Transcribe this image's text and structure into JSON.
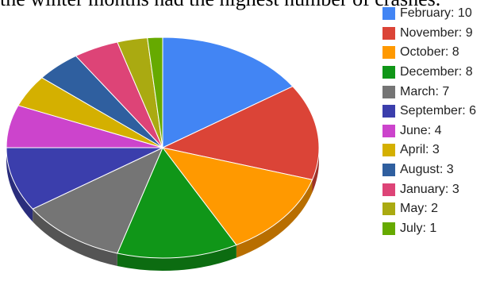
{
  "caption": "the winter months had the highest number of crashes.",
  "chart_data": {
    "type": "pie",
    "style": "3d",
    "legend_position": "right",
    "slices": [
      {
        "label": "February",
        "value": 10,
        "color": "#4285f4"
      },
      {
        "label": "November",
        "value": 9,
        "color": "#db4437"
      },
      {
        "label": "October",
        "value": 8,
        "color": "#ff9900"
      },
      {
        "label": "December",
        "value": 8,
        "color": "#109618"
      },
      {
        "label": "March",
        "value": 7,
        "color": "#757575"
      },
      {
        "label": "September",
        "value": 6,
        "color": "#3b3eac"
      },
      {
        "label": "June",
        "value": 4,
        "color": "#cc44cc"
      },
      {
        "label": "April",
        "value": 3,
        "color": "#d4b000"
      },
      {
        "label": "August",
        "value": 3,
        "color": "#2f5f9f"
      },
      {
        "label": "January",
        "value": 3,
        "color": "#dd4477"
      },
      {
        "label": "May",
        "value": 2,
        "color": "#aaaa11"
      },
      {
        "label": "July",
        "value": 1,
        "color": "#66aa00"
      }
    ]
  }
}
